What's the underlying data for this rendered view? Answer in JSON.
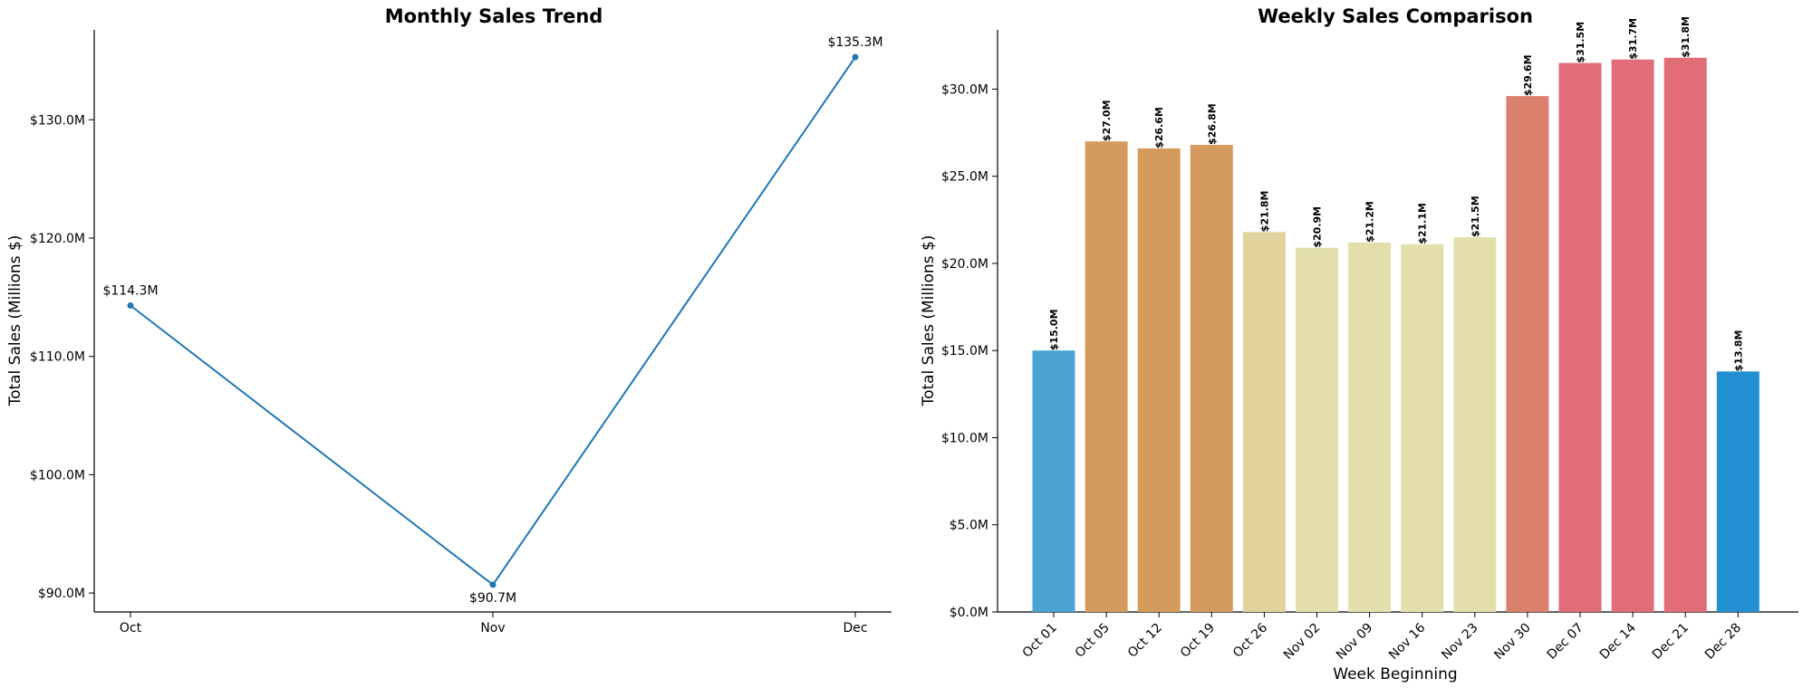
{
  "chart_data": [
    {
      "type": "line",
      "title": "Monthly Sales Trend",
      "xlabel": "",
      "ylabel": "Total Sales (Millions $)",
      "categories": [
        "Oct",
        "Nov",
        "Dec"
      ],
      "values": [
        114.3,
        90.7,
        135.3
      ],
      "data_labels": [
        "$114.3M",
        "$90.7M",
        "$135.3M"
      ],
      "ylim": [
        88.4,
        137.6
      ],
      "yticks": [
        90,
        100,
        110,
        120,
        130
      ],
      "ytick_labels": [
        "$90.0M",
        "$100.0M",
        "$110.0M",
        "$120.0M",
        "$130.0M"
      ],
      "color": "#1f77b4",
      "grid": false
    },
    {
      "type": "bar",
      "title": "Weekly Sales Comparison",
      "xlabel": "Week Beginning",
      "ylabel": "Total Sales (Millions $)",
      "categories": [
        "Oct 01",
        "Oct 05",
        "Oct 12",
        "Oct 19",
        "Oct 26",
        "Nov 02",
        "Nov 09",
        "Nov 16",
        "Nov 23",
        "Nov 30",
        "Dec 07",
        "Dec 14",
        "Dec 21",
        "Dec 28"
      ],
      "values": [
        15.0,
        27.0,
        26.6,
        26.8,
        21.8,
        20.9,
        21.2,
        21.1,
        21.5,
        29.6,
        31.5,
        31.7,
        31.8,
        13.8
      ],
      "data_labels": [
        "$15.0M",
        "$27.0M",
        "$26.6M",
        "$26.8M",
        "$21.8M",
        "$20.9M",
        "$21.2M",
        "$21.1M",
        "$21.5M",
        "$29.6M",
        "$31.5M",
        "$31.7M",
        "$31.8M",
        "$13.8M"
      ],
      "colors": [
        "#4aa3d0",
        "#d59b5c",
        "#d59b5c",
        "#d59b5c",
        "#e0d49c",
        "#e3dfad",
        "#e3dfad",
        "#e3dfad",
        "#e3dfad",
        "#db806c",
        "#e06d78",
        "#e06d78",
        "#e06d78",
        "#2290d0"
      ],
      "ylim": [
        0,
        33.4
      ],
      "yticks": [
        0,
        5,
        10,
        15,
        20,
        25,
        30
      ],
      "ytick_labels": [
        "$0.0M",
        "$5.0M",
        "$10.0M",
        "$15.0M",
        "$20.0M",
        "$25.0M",
        "$30.0M"
      ],
      "grid": false
    }
  ]
}
